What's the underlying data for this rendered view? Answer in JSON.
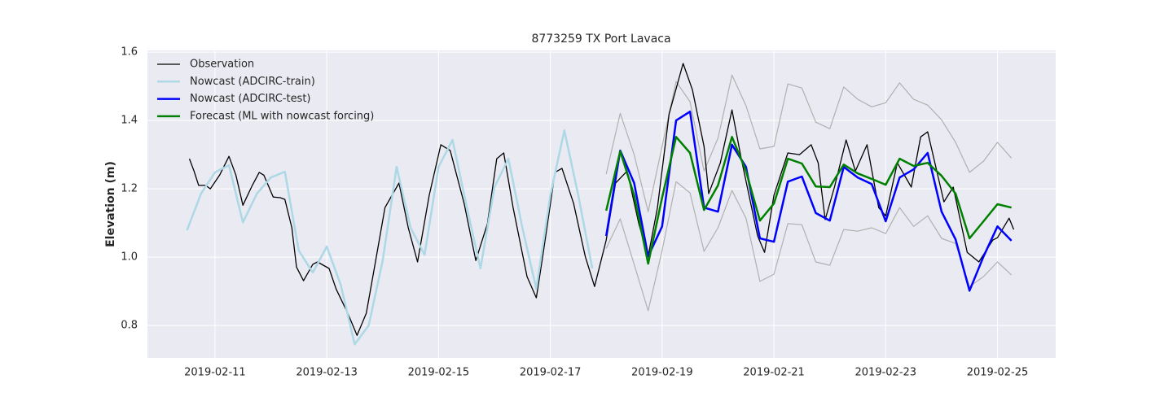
{
  "chart_data": {
    "type": "line",
    "title": "8773259 TX Port Lavaca",
    "y_label": "Elevation (m)",
    "xlim": [
      "2019-02-09T19:00",
      "2019-02-26T01:00"
    ],
    "xticks": [
      "2019-02-11",
      "2019-02-13",
      "2019-02-15",
      "2019-02-17",
      "2019-02-19",
      "2019-02-21",
      "2019-02-23",
      "2019-02-25"
    ],
    "ylim": [
      0.705,
      1.605
    ],
    "yticks": [
      0.8,
      {
        "value": 1,
        "label": "1.0"
      },
      1.2,
      1.4,
      1.6
    ],
    "grid": true,
    "legend": "upper left",
    "series": [
      {
        "color": "#b0b0b0",
        "x": [
          "2019-02-18T00:00",
          "2019-02-18T06:00",
          "2019-02-18T12:00",
          "2019-02-18T18:00",
          "2019-02-19T00:00",
          "2019-02-19T06:00",
          "2019-02-19T12:00",
          "2019-02-19T18:00",
          "2019-02-20T00:00",
          "2019-02-20T06:00",
          "2019-02-20T12:00",
          "2019-02-20T18:00",
          "2019-02-21T00:00",
          "2019-02-21T06:00",
          "2019-02-21T12:00",
          "2019-02-21T18:00",
          "2019-02-22T00:00",
          "2019-02-22T06:00",
          "2019-02-22T12:00",
          "2019-02-22T18:00",
          "2019-02-23T00:00",
          "2019-02-23T06:00",
          "2019-02-23T12:00",
          "2019-02-23T18:00",
          "2019-02-24T00:00",
          "2019-02-24T06:00",
          "2019-02-24T12:00",
          "2019-02-24T18:00",
          "2019-02-25T00:00",
          "2019-02-25T06:00"
        ],
        "values": [
          1.243,
          1.421,
          1.3,
          1.133,
          1.324,
          1.514,
          1.455,
          1.252,
          1.348,
          1.533,
          1.443,
          1.317,
          1.324,
          1.507,
          1.495,
          1.395,
          1.376,
          1.498,
          1.462,
          1.44,
          1.452,
          1.51,
          1.462,
          1.445,
          1.402,
          1.336,
          1.248,
          1.281,
          1.336,
          1.29
        ]
      },
      {
        "color": "#b0b0b0",
        "x": [
          "2019-02-18T00:00",
          "2019-02-18T06:00",
          "2019-02-18T12:00",
          "2019-02-18T18:00",
          "2019-02-19T00:00",
          "2019-02-19T06:00",
          "2019-02-19T12:00",
          "2019-02-19T18:00",
          "2019-02-20T00:00",
          "2019-02-20T06:00",
          "2019-02-20T12:00",
          "2019-02-20T18:00",
          "2019-02-21T00:00",
          "2019-02-21T06:00",
          "2019-02-21T12:00",
          "2019-02-21T18:00",
          "2019-02-22T00:00",
          "2019-02-22T06:00",
          "2019-02-22T12:00",
          "2019-02-22T18:00",
          "2019-02-23T00:00",
          "2019-02-23T06:00",
          "2019-02-23T12:00",
          "2019-02-23T18:00",
          "2019-02-24T00:00",
          "2019-02-24T06:00",
          "2019-02-24T12:00",
          "2019-02-24T18:00",
          "2019-02-25T00:00",
          "2019-02-25T06:00"
        ],
        "values": [
          1.026,
          1.112,
          0.979,
          0.843,
          1.019,
          1.221,
          1.188,
          1.017,
          1.086,
          1.195,
          1.114,
          0.929,
          0.95,
          1.098,
          1.095,
          0.986,
          0.976,
          1.081,
          1.076,
          1.086,
          1.069,
          1.145,
          1.09,
          1.121,
          1.055,
          1.04,
          0.914,
          0.943,
          0.986,
          0.948
        ]
      },
      {
        "name": "Observation",
        "color": "#000000",
        "x": [
          "2019-02-10T13:00",
          "2019-02-10T15:00",
          "2019-02-10T17:00",
          "2019-02-10T20:00",
          "2019-02-10T22:00",
          "2019-02-11T02:00",
          "2019-02-11T06:00",
          "2019-02-11T09:00",
          "2019-02-11T12:00",
          "2019-02-11T16:00",
          "2019-02-11T19:00",
          "2019-02-11T21:00",
          "2019-02-12T01:00",
          "2019-02-12T04:00",
          "2019-02-12T06:00",
          "2019-02-12T09:00",
          "2019-02-12T11:00",
          "2019-02-12T14:00",
          "2019-02-12T18:00",
          "2019-02-12T20:00",
          "2019-02-13T01:00",
          "2019-02-13T04:00",
          "2019-02-13T09:00",
          "2019-02-13T13:00",
          "2019-02-13T17:00",
          "2019-02-13T21:00",
          "2019-02-14T01:00",
          "2019-02-14T07:00",
          "2019-02-14T11:00",
          "2019-02-14T15:00",
          "2019-02-14T20:00",
          "2019-02-15T01:00",
          "2019-02-15T05:00",
          "2019-02-15T11:00",
          "2019-02-15T16:00",
          "2019-02-15T21:00",
          "2019-02-16T01:00",
          "2019-02-16T04:00",
          "2019-02-16T08:00",
          "2019-02-16T14:00",
          "2019-02-16T18:00",
          "2019-02-16T21:00",
          "2019-02-17T02:00",
          "2019-02-17T05:00",
          "2019-02-17T10:00",
          "2019-02-17T15:00",
          "2019-02-17T19:00",
          "2019-02-18T00:00",
          "2019-02-18T04:00",
          "2019-02-18T09:00",
          "2019-02-18T14:00",
          "2019-02-18T18:00",
          "2019-02-18T22:00",
          "2019-02-19T03:00",
          "2019-02-19T09:00",
          "2019-02-19T13:00",
          "2019-02-19T18:00",
          "2019-02-19T20:00",
          "2019-02-20T01:00",
          "2019-02-20T06:00",
          "2019-02-20T10:00",
          "2019-02-20T17:00",
          "2019-02-20T20:00",
          "2019-02-21T00:00",
          "2019-02-21T06:00",
          "2019-02-21T11:00",
          "2019-02-21T16:00",
          "2019-02-21T19:00",
          "2019-02-21T22:00",
          "2019-02-22T02:00",
          "2019-02-22T07:00",
          "2019-02-22T11:00",
          "2019-02-22T16:00",
          "2019-02-22T21:00",
          "2019-02-23T00:00",
          "2019-02-23T05:00",
          "2019-02-23T11:00",
          "2019-02-23T15:00",
          "2019-02-23T18:00",
          "2019-02-24T01:00",
          "2019-02-24T05:00",
          "2019-02-24T11:00",
          "2019-02-24T16:00",
          "2019-02-24T22:00",
          "2019-02-25T00:00",
          "2019-02-25T05:00",
          "2019-02-25T07:00"
        ],
        "values": [
          1.288,
          1.252,
          1.21,
          1.21,
          1.2,
          1.24,
          1.295,
          1.24,
          1.152,
          1.21,
          1.248,
          1.24,
          1.176,
          1.174,
          1.169,
          1.086,
          0.971,
          0.931,
          0.979,
          0.986,
          0.967,
          0.907,
          0.836,
          0.771,
          0.836,
          0.99,
          1.145,
          1.217,
          1.086,
          0.986,
          1.181,
          1.329,
          1.312,
          1.157,
          0.99,
          1.098,
          1.288,
          1.305,
          1.145,
          0.943,
          0.881,
          1.014,
          1.248,
          1.26,
          1.157,
          1.002,
          0.914,
          1.05,
          1.217,
          1.252,
          1.098,
          1.002,
          1.145,
          1.419,
          1.567,
          1.49,
          1.324,
          1.186,
          1.276,
          1.431,
          1.288,
          1.062,
          1.014,
          1.181,
          1.305,
          1.3,
          1.329,
          1.276,
          1.11,
          1.205,
          1.343,
          1.252,
          1.329,
          1.145,
          1.121,
          1.276,
          1.205,
          1.352,
          1.367,
          1.162,
          1.205,
          1.014,
          0.986,
          1.05,
          1.057,
          1.114,
          1.081
        ]
      },
      {
        "name": "Nowcast (ADCIRC-train)",
        "color": "#add8e6",
        "x": [
          "2019-02-10T12:00",
          "2019-02-10T18:00",
          "2019-02-11T00:00",
          "2019-02-11T06:00",
          "2019-02-11T12:00",
          "2019-02-11T18:00",
          "2019-02-12T00:00",
          "2019-02-12T06:00",
          "2019-02-12T12:00",
          "2019-02-12T18:00",
          "2019-02-13T00:00",
          "2019-02-13T06:00",
          "2019-02-13T12:00",
          "2019-02-13T18:00",
          "2019-02-14T00:00",
          "2019-02-14T06:00",
          "2019-02-14T12:00",
          "2019-02-14T18:00",
          "2019-02-15T00:00",
          "2019-02-15T06:00",
          "2019-02-15T12:00",
          "2019-02-15T18:00",
          "2019-02-16T00:00",
          "2019-02-16T06:00",
          "2019-02-16T12:00",
          "2019-02-16T18:00",
          "2019-02-17T00:00",
          "2019-02-17T06:00",
          "2019-02-17T12:00",
          "2019-02-17T18:00"
        ],
        "values": [
          1.079,
          1.186,
          1.248,
          1.269,
          1.102,
          1.186,
          1.233,
          1.25,
          1.019,
          0.955,
          1.031,
          0.919,
          0.745,
          0.8,
          0.99,
          1.264,
          1.086,
          1.007,
          1.264,
          1.343,
          1.15,
          0.967,
          1.205,
          1.288,
          1.086,
          0.907,
          1.181,
          1.371,
          1.181,
          0.967
        ]
      },
      {
        "name": "Nowcast (ADCIRC-test)",
        "color": "#0000ff",
        "x": [
          "2019-02-18T00:00",
          "2019-02-18T06:00",
          "2019-02-18T12:00",
          "2019-02-18T18:00",
          "2019-02-19T00:00",
          "2019-02-19T06:00",
          "2019-02-19T12:00",
          "2019-02-19T18:00",
          "2019-02-20T00:00",
          "2019-02-20T06:00",
          "2019-02-20T12:00",
          "2019-02-20T18:00",
          "2019-02-21T00:00",
          "2019-02-21T06:00",
          "2019-02-21T12:00",
          "2019-02-21T18:00",
          "2019-02-22T00:00",
          "2019-02-22T06:00",
          "2019-02-22T12:00",
          "2019-02-22T18:00",
          "2019-02-23T00:00",
          "2019-02-23T06:00",
          "2019-02-23T12:00",
          "2019-02-23T18:00",
          "2019-02-24T00:00",
          "2019-02-24T06:00",
          "2019-02-24T12:00",
          "2019-02-24T18:00",
          "2019-02-25T00:00",
          "2019-02-25T06:00"
        ],
        "values": [
          1.062,
          1.312,
          1.217,
          1.002,
          1.09,
          1.4,
          1.426,
          1.145,
          1.133,
          1.329,
          1.264,
          1.055,
          1.045,
          1.221,
          1.236,
          1.129,
          1.107,
          1.264,
          1.233,
          1.214,
          1.105,
          1.233,
          1.257,
          1.305,
          1.133,
          1.052,
          0.902,
          1.002,
          1.09,
          1.048
        ]
      },
      {
        "name": "Forecast (ML with nowcast forcing)",
        "color": "#008000",
        "x": [
          "2019-02-18T00:00",
          "2019-02-18T06:00",
          "2019-02-18T12:00",
          "2019-02-18T18:00",
          "2019-02-19T00:00",
          "2019-02-19T06:00",
          "2019-02-19T12:00",
          "2019-02-19T18:00",
          "2019-02-20T00:00",
          "2019-02-20T06:00",
          "2019-02-20T12:00",
          "2019-02-20T18:00",
          "2019-02-21T00:00",
          "2019-02-21T06:00",
          "2019-02-21T12:00",
          "2019-02-21T18:00",
          "2019-02-22T00:00",
          "2019-02-22T06:00",
          "2019-02-22T12:00",
          "2019-02-22T18:00",
          "2019-02-23T00:00",
          "2019-02-23T06:00",
          "2019-02-23T12:00",
          "2019-02-23T18:00",
          "2019-02-24T00:00",
          "2019-02-24T06:00",
          "2019-02-24T12:00",
          "2019-02-24T18:00",
          "2019-02-25T00:00",
          "2019-02-25T06:00"
        ],
        "values": [
          1.136,
          1.31,
          1.181,
          0.981,
          1.174,
          1.352,
          1.305,
          1.138,
          1.21,
          1.352,
          1.252,
          1.107,
          1.157,
          1.288,
          1.274,
          1.207,
          1.205,
          1.271,
          1.245,
          1.229,
          1.212,
          1.288,
          1.267,
          1.276,
          1.238,
          1.186,
          1.055,
          1.105,
          1.155,
          1.145
        ]
      }
    ]
  }
}
